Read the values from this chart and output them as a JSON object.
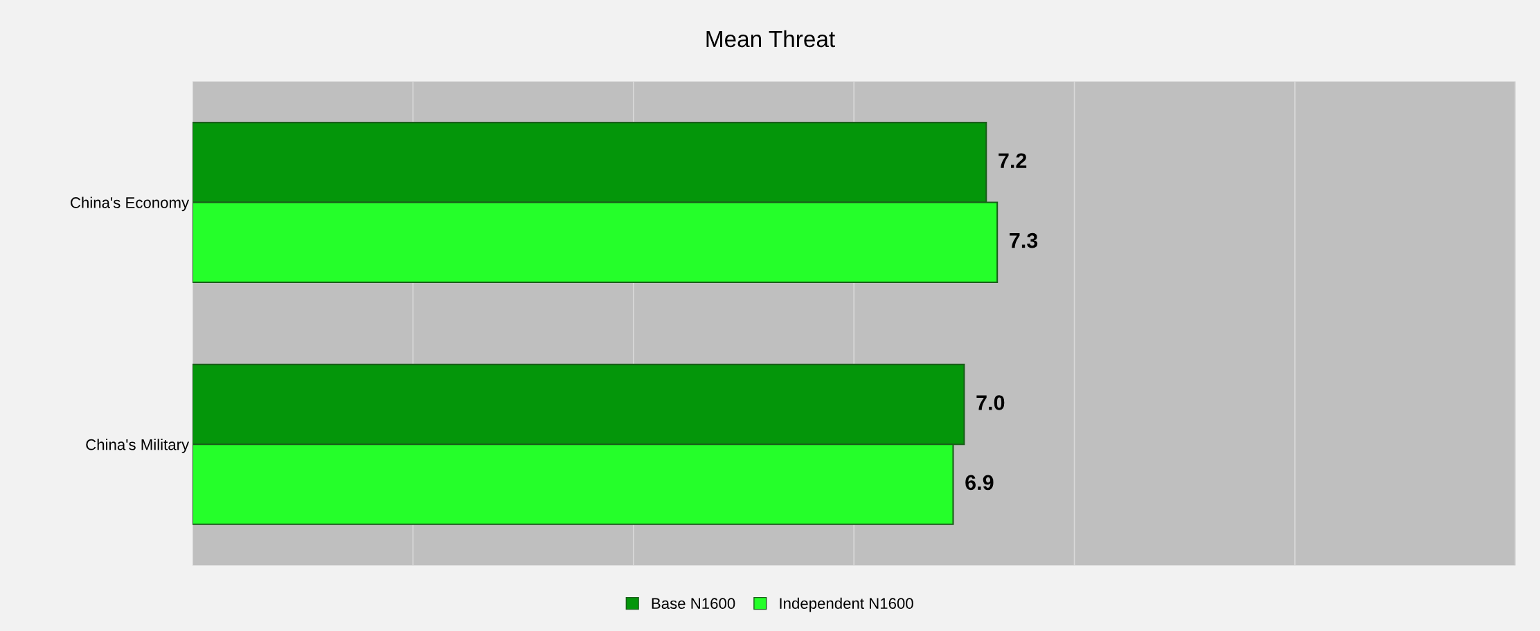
{
  "chart_data": {
    "type": "bar",
    "orientation": "horizontal",
    "title": "Mean Threat",
    "categories": [
      "China's Economy",
      "China's Military"
    ],
    "series": [
      {
        "name": "Base N1600",
        "color": "#04960a",
        "values": [
          7.2,
          7.0
        ],
        "value_labels": [
          "7.2",
          "7.0"
        ]
      },
      {
        "name": "Independent N1600",
        "color": "#25ff2a",
        "values": [
          7.3,
          6.9
        ],
        "value_labels": [
          "7.3",
          "6.9"
        ]
      }
    ],
    "xlim": [
      0,
      12
    ],
    "xticks": [
      {
        "value": 0,
        "label": null
      },
      {
        "value": 2,
        "label": null
      },
      {
        "value": 4,
        "label": null
      },
      {
        "value": 6,
        "label": null
      },
      {
        "value": 8,
        "label": null
      },
      {
        "value": 10,
        "label": null
      },
      {
        "value": 12,
        "label": null
      }
    ],
    "grid": "x",
    "legend": "bottom",
    "tick_labels": "y"
  }
}
